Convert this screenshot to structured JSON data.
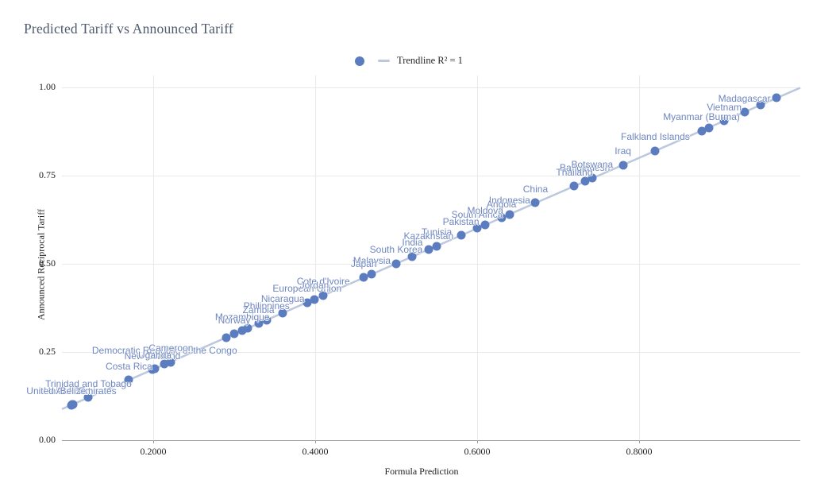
{
  "title": "Predicted Tariff vs Announced Tariff",
  "legend": {
    "series_marker": "dot-icon",
    "trendline_marker": "dash-icon"
  },
  "colors": {
    "point": "#5b7dc0",
    "trendline": "#bcc8de",
    "point_label": "#6e86c0",
    "title": "#4e5a6e",
    "gridline": "#e9e9e9",
    "axis_line": "#9b9b9b"
  },
  "chart_data": {
    "type": "scatter",
    "title": "Predicted Tariff vs Announced Tariff",
    "xlabel": "Formula Prediction",
    "ylabel": "Announced Reciprocal Tariff",
    "xlim": [
      0.087,
      1.0
    ],
    "ylim": [
      0.0,
      1.035
    ],
    "grid": true,
    "legend_position": "top-center",
    "x_ticks": [
      {
        "label": "0.2000",
        "value": 0.2
      },
      {
        "label": "0.4000",
        "value": 0.4
      },
      {
        "label": "0.6000",
        "value": 0.6
      },
      {
        "label": "0.8000",
        "value": 0.8
      }
    ],
    "y_ticks": [
      {
        "label": "0.00",
        "value": 0.0
      },
      {
        "label": "0.25",
        "value": 0.25
      },
      {
        "label": "0.50",
        "value": 0.5
      },
      {
        "label": "0.75",
        "value": 0.75
      },
      {
        "label": "1.00",
        "value": 1.0
      }
    ],
    "trendline": {
      "label": "Trendline R² = 1",
      "r2": 1,
      "x_start": 0.087,
      "x_end": 0.999
    },
    "points": [
      {
        "label": "",
        "x": 0.97,
        "y": 0.97,
        "show_label": false
      },
      {
        "label": "",
        "x": 0.95,
        "y": 0.95,
        "show_label": false
      },
      {
        "label": "Madagascar",
        "x": 0.93,
        "y": 0.93,
        "show_label": true
      },
      {
        "label": "Vietnam",
        "x": 0.905,
        "y": 0.905,
        "show_label": true
      },
      {
        "label": "",
        "x": 0.886,
        "y": 0.886,
        "show_label": false
      },
      {
        "label": "Myanmar (Burma)",
        "x": 0.877,
        "y": 0.877,
        "show_label": true
      },
      {
        "label": "Falkland Islands",
        "x": 0.82,
        "y": 0.82,
        "show_label": true
      },
      {
        "label": "Iraq",
        "x": 0.78,
        "y": 0.78,
        "show_label": true
      },
      {
        "label": "Bangladesh",
        "x": 0.733,
        "y": 0.733,
        "show_label": true
      },
      {
        "label": "Botswana",
        "x": 0.742,
        "y": 0.742,
        "show_label": true
      },
      {
        "label": "Thailand",
        "x": 0.72,
        "y": 0.72,
        "show_label": true
      },
      {
        "label": "China",
        "x": 0.672,
        "y": 0.672,
        "show_label": true
      },
      {
        "label": "Indonesia",
        "x": 0.64,
        "y": 0.64,
        "show_label": true
      },
      {
        "label": "Angola",
        "x": 0.63,
        "y": 0.63,
        "show_label": true
      },
      {
        "label": "South Africa",
        "x": 0.6,
        "y": 0.6,
        "show_label": true
      },
      {
        "label": "Moldova",
        "x": 0.61,
        "y": 0.61,
        "show_label": true
      },
      {
        "label": "Pakistan",
        "x": 0.58,
        "y": 0.58,
        "show_label": true
      },
      {
        "label": "Tunisia",
        "x": 0.55,
        "y": 0.55,
        "show_label": true
      },
      {
        "label": "Kazakhstan",
        "x": 0.54,
        "y": 0.54,
        "show_label": true
      },
      {
        "label": "India",
        "x": 0.52,
        "y": 0.52,
        "show_label": true
      },
      {
        "label": "South Korea",
        "x": 0.5,
        "y": 0.5,
        "show_label": true
      },
      {
        "label": "Malaysia",
        "x": 0.47,
        "y": 0.47,
        "show_label": true
      },
      {
        "label": "Japan",
        "x": 0.46,
        "y": 0.46,
        "show_label": true
      },
      {
        "label": "Cote d'Ivoire",
        "x": 0.41,
        "y": 0.41,
        "show_label": true
      },
      {
        "label": "European Union",
        "x": 0.39,
        "y": 0.39,
        "show_label": true
      },
      {
        "label": "Jordan",
        "x": 0.399,
        "y": 0.399,
        "show_label": true
      },
      {
        "label": "Nicaragua",
        "x": 0.36,
        "y": 0.36,
        "show_label": true
      },
      {
        "label": "Philippines",
        "x": 0.34,
        "y": 0.34,
        "show_label": true
      },
      {
        "label": "Zambia",
        "x": 0.33,
        "y": 0.33,
        "show_label": true
      },
      {
        "label": "",
        "x": 0.317,
        "y": 0.317,
        "show_label": false
      },
      {
        "label": "Mozambique",
        "x": 0.31,
        "y": 0.31,
        "show_label": true
      },
      {
        "label": "Norway",
        "x": 0.3,
        "y": 0.3,
        "show_label": true
      },
      {
        "label": "",
        "x": 0.29,
        "y": 0.29,
        "show_label": false
      },
      {
        "label": "Democratic Republic of the Congo",
        "x": 0.214,
        "y": 0.215,
        "show_label": true
      },
      {
        "label": "Cameroon",
        "x": 0.222,
        "y": 0.22,
        "show_label": true
      },
      {
        "label": "New Zealand",
        "x": 0.199,
        "y": 0.199,
        "show_label": true
      },
      {
        "label": "Uganda",
        "x": 0.202,
        "y": 0.201,
        "show_label": true
      },
      {
        "label": "Costa Rica",
        "x": 0.17,
        "y": 0.17,
        "show_label": true
      },
      {
        "label": "Trinidad and Tobago",
        "x": 0.12,
        "y": 0.12,
        "show_label": true
      },
      {
        "label": "United States",
        "x": 0.1,
        "y": 0.1,
        "show_label": true
      },
      {
        "label": "United Arab Emirates",
        "x": 0.099,
        "y": 0.099,
        "show_label": true
      },
      {
        "label": "Belize",
        "x": 0.101,
        "y": 0.1,
        "show_label": true
      }
    ]
  }
}
